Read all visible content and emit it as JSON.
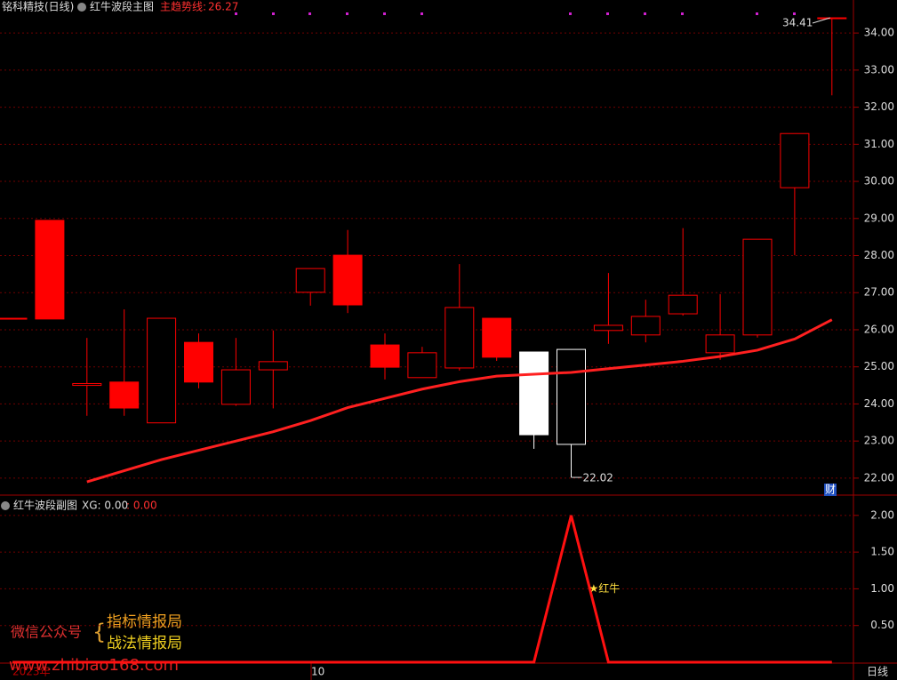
{
  "header": {
    "stock": "铭科精技(日线)",
    "main_name": "红牛波段主图",
    "trend_label": "主趋势线:",
    "trend_value": 26.27,
    "sub_name": "红牛波段副图",
    "xg": "XG: 0.00",
    "xg2": ": 0.00",
    "cai": "财",
    "period": "日线"
  },
  "x_labels": [
    "2023年",
    "10"
  ],
  "watermark": {
    "prefix": "微信公众号",
    "line1": "指标情报局",
    "line2": "战法情报局",
    "url": "www.zhibiao168.com"
  },
  "chart_data": [
    {
      "type": "candlestick",
      "open": [
        26.31,
        28.95,
        24.5,
        24.59,
        23.49,
        25.66,
        23.99,
        24.92,
        27.01,
        28.01,
        25.59,
        24.71,
        24.97,
        26.31,
        25.4,
        22.91,
        25.98,
        25.86,
        26.43,
        25.38,
        25.86,
        29.83,
        34.41
      ],
      "close": [
        26.31,
        26.29,
        24.55,
        23.89,
        26.31,
        24.59,
        24.92,
        25.14,
        27.65,
        26.67,
        24.99,
        25.38,
        26.6,
        25.26,
        23.17,
        25.47,
        26.12,
        26.36,
        26.93,
        25.86,
        28.44,
        31.29,
        34.41
      ],
      "high": [
        26.31,
        28.95,
        25.78,
        26.55,
        26.31,
        25.9,
        25.78,
        25.98,
        27.65,
        28.69,
        25.9,
        25.54,
        27.77,
        26.31,
        25.4,
        25.47,
        27.53,
        26.81,
        28.74,
        26.96,
        28.44,
        31.29,
        34.41
      ],
      "low": [
        26.31,
        26.29,
        23.68,
        23.68,
        23.49,
        24.42,
        23.95,
        23.88,
        26.65,
        26.45,
        24.66,
        24.71,
        24.9,
        25.16,
        22.79,
        22.02,
        25.62,
        25.66,
        26.38,
        25.19,
        25.79,
        28.01,
        32.32
      ],
      "colors": [
        "#ff0000",
        "#ff0000",
        "#ff0000",
        "#ff0000",
        "#ff0000",
        "#ff0000",
        "#ff0000",
        "#ff0000",
        "#ff0000",
        "#ff0000",
        "#ff0000",
        "#ff0000",
        "#ff0000",
        "#ff0000",
        "#ffffff",
        "#ffffff",
        "#ff0000",
        "#ff0000",
        "#ff0000",
        "#ff0000",
        "#ff0000",
        "#ff0000",
        "#ff0000"
      ],
      "hollow": [
        false,
        false,
        true,
        false,
        true,
        false,
        true,
        true,
        true,
        false,
        false,
        true,
        true,
        false,
        false,
        true,
        true,
        true,
        true,
        true,
        true,
        true,
        true
      ],
      "trend": {
        "color": "#ff2020",
        "values": [
          null,
          null,
          21.9,
          22.2,
          22.5,
          22.75,
          23.0,
          23.25,
          23.55,
          23.9,
          24.15,
          24.4,
          24.6,
          24.75,
          24.8,
          24.85,
          24.95,
          25.05,
          25.15,
          25.28,
          25.45,
          25.75,
          26.27
        ]
      },
      "max_label": 34.41,
      "min_label": 22.02,
      "ylim": [
        21.59,
        34.89
      ],
      "yticks": [
        {
          "value": 22,
          "label": "22.00"
        },
        {
          "value": 23,
          "label": "23.00"
        },
        {
          "value": 24,
          "label": "24.00"
        },
        {
          "value": 25,
          "label": "25.00"
        },
        {
          "value": 26,
          "label": "26.00"
        },
        {
          "value": 27,
          "label": "27.00"
        },
        {
          "value": 28,
          "label": "28.00"
        },
        {
          "value": 29,
          "label": "29.00"
        },
        {
          "value": 30,
          "label": "30.00"
        },
        {
          "value": 31,
          "label": "31.00"
        },
        {
          "value": 32,
          "label": "32.00"
        },
        {
          "value": 33,
          "label": "33.00"
        },
        {
          "value": 34,
          "label": "34.00"
        }
      ],
      "grid": true
    },
    {
      "type": "line",
      "color": "#ff1010",
      "values": [
        0,
        0,
        0,
        0,
        0,
        0,
        0,
        0,
        0,
        0,
        0,
        0,
        0,
        0,
        0,
        2.0,
        0,
        0,
        0,
        0,
        0,
        0,
        0
      ],
      "annotation": "★红牛",
      "ylim": [
        0,
        2.24
      ],
      "yticks": [
        {
          "value": 0.5,
          "label": "0.50"
        },
        {
          "value": 1,
          "label": "1.00"
        },
        {
          "value": 1.5,
          "label": "1.50"
        },
        {
          "value": 2,
          "label": "2.00"
        }
      ],
      "grid": true
    }
  ]
}
